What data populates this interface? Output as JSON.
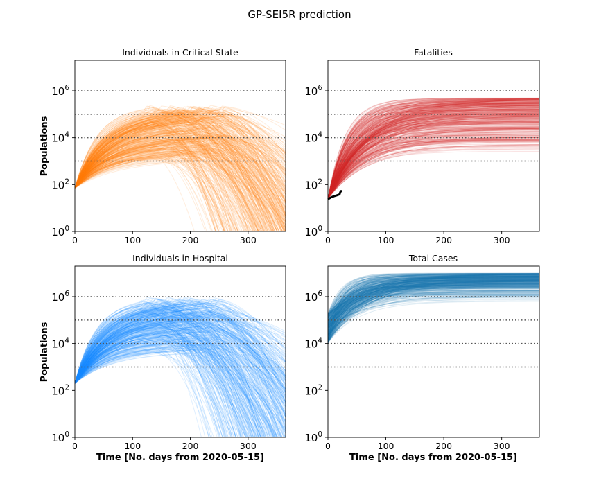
{
  "figure": {
    "title": "GP-SEI5R prediction",
    "grid_style": "dotted horizontal lines at powers of ten from 10^3 to 10^6"
  },
  "chart_data": [
    {
      "type": "line",
      "title": "Individuals in Critical State",
      "xlabel": "",
      "ylabel": "Populations",
      "xlim": [
        0,
        365
      ],
      "ylim_log10": [
        0,
        7.3
      ],
      "yscale": "log",
      "x_ticks": [
        "0",
        "100",
        "200",
        "300"
      ],
      "x_tick_values": [
        0,
        100,
        200,
        300
      ],
      "y_ticks": [
        {
          "base": "10",
          "exp": "0"
        },
        {
          "base": "10",
          "exp": "2"
        },
        {
          "base": "10",
          "exp": "4"
        },
        {
          "base": "10",
          "exp": "6"
        }
      ],
      "y_tick_values_log10": [
        0,
        2,
        4,
        6
      ],
      "hlines_log10": [
        3,
        4,
        5,
        6
      ],
      "ensemble": {
        "color": "#ff7f0e",
        "trajectories": 400,
        "description": "ensemble of predicted trajectories",
        "start_log10": 1.85,
        "peak_day_range": [
          120,
          260
        ],
        "peak_log10_range": [
          3.0,
          5.4
        ],
        "end_log10_range": [
          0.0,
          4.6
        ]
      },
      "observed": []
    },
    {
      "type": "line",
      "title": "Fatalities",
      "xlabel": "",
      "ylabel": "",
      "xlim": [
        0,
        365
      ],
      "ylim_log10": [
        0,
        7.3
      ],
      "yscale": "log",
      "x_ticks": [
        "0",
        "100",
        "200",
        "300"
      ],
      "x_tick_values": [
        0,
        100,
        200,
        300
      ],
      "y_ticks": [
        {
          "base": "10",
          "exp": "0"
        },
        {
          "base": "10",
          "exp": "2"
        },
        {
          "base": "10",
          "exp": "4"
        },
        {
          "base": "10",
          "exp": "6"
        }
      ],
      "y_tick_values_log10": [
        0,
        2,
        4,
        6
      ],
      "hlines_log10": [
        3,
        4,
        5,
        6
      ],
      "ensemble": {
        "color": "#d62728",
        "trajectories": 400,
        "description": "ensemble of predicted cumulative fatalities",
        "start_log10": 1.4,
        "plateau_log10_range": [
          3.4,
          5.7
        ],
        "rise_days_range": [
          90,
          230
        ]
      },
      "observed": [
        {
          "x": 0,
          "y_log10": 1.38
        },
        {
          "x": 5,
          "y_log10": 1.45
        },
        {
          "x": 10,
          "y_log10": 1.5
        },
        {
          "x": 15,
          "y_log10": 1.54
        },
        {
          "x": 20,
          "y_log10": 1.58
        },
        {
          "x": 22,
          "y_log10": 1.72
        },
        {
          "x": 24,
          "y_log10": 1.72
        }
      ]
    },
    {
      "type": "line",
      "title": "Individuals in Hospital",
      "xlabel": "Time [No. days from 2020-05-15]",
      "ylabel": "Populations",
      "xlim": [
        0,
        365
      ],
      "ylim_log10": [
        0,
        7.3
      ],
      "yscale": "log",
      "x_ticks": [
        "0",
        "100",
        "200",
        "300"
      ],
      "x_tick_values": [
        0,
        100,
        200,
        300
      ],
      "y_ticks": [
        {
          "base": "10",
          "exp": "0"
        },
        {
          "base": "10",
          "exp": "2"
        },
        {
          "base": "10",
          "exp": "4"
        },
        {
          "base": "10",
          "exp": "6"
        }
      ],
      "y_tick_values_log10": [
        0,
        2,
        4,
        6
      ],
      "hlines_log10": [
        3,
        4,
        5,
        6
      ],
      "ensemble": {
        "color": "#1e8cff",
        "trajectories": 400,
        "description": "ensemble of predicted trajectories",
        "start_log10": 2.3,
        "peak_day_range": [
          110,
          250
        ],
        "peak_log10_range": [
          3.6,
          6.0
        ],
        "end_log10_range": [
          0.1,
          5.0
        ]
      },
      "observed": []
    },
    {
      "type": "line",
      "title": "Total Cases",
      "xlabel": "Time [No. days from 2020-05-15]",
      "ylabel": "",
      "xlim": [
        0,
        365
      ],
      "ylim_log10": [
        0,
        7.3
      ],
      "yscale": "log",
      "x_ticks": [
        "0",
        "100",
        "200",
        "300"
      ],
      "x_tick_values": [
        0,
        100,
        200,
        300
      ],
      "y_ticks": [
        {
          "base": "10",
          "exp": "0"
        },
        {
          "base": "10",
          "exp": "2"
        },
        {
          "base": "10",
          "exp": "4"
        },
        {
          "base": "10",
          "exp": "6"
        }
      ],
      "y_tick_values_log10": [
        0,
        2,
        4,
        6
      ],
      "hlines_log10": [
        3,
        4,
        5,
        6
      ],
      "ensemble": {
        "color": "#1f77b4",
        "trajectories": 400,
        "description": "ensemble of predicted cumulative cases",
        "start_log10_range": [
          4.0,
          5.3
        ],
        "plateau_log10_range": [
          5.6,
          7.0
        ],
        "rise_days_range": [
          60,
          230
        ]
      },
      "observed": []
    }
  ]
}
